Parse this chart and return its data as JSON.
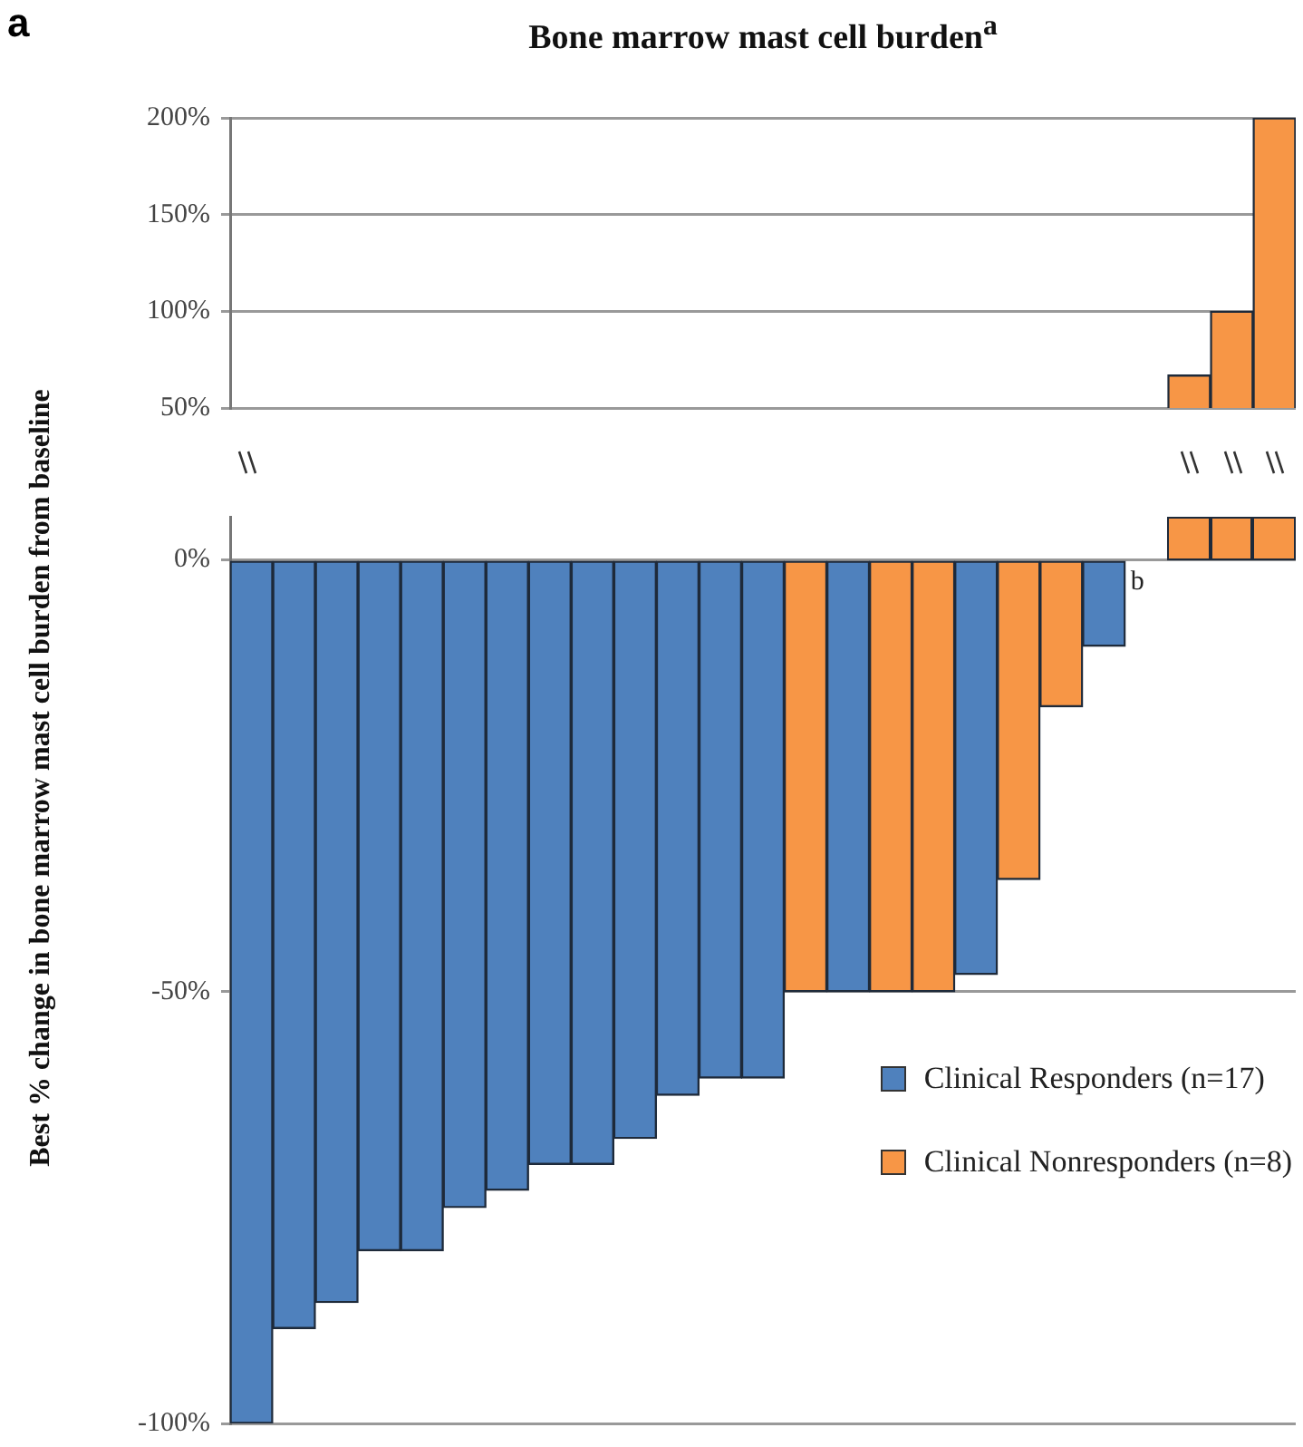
{
  "chart_data": [
    {
      "type": "bar",
      "title": "Bone marrow mast cell burden$^{a}$",
      "annotations": [
        "a"
      ],
      "categories": [
        null,
        null,
        null,
        null,
        null,
        null,
        null,
        null,
        null,
        null,
        null,
        null,
        null,
        null,
        null,
        null,
        null,
        null,
        null,
        null,
        null,
        null,
        null,
        null,
        null
      ],
      "series": [
        {
          "color": "#f79646",
          "values": [
            null,
            null,
            null,
            null,
            null,
            null,
            null,
            null,
            null,
            null,
            null,
            null,
            null,
            null,
            null,
            null,
            null,
            null,
            null,
            null,
            null,
            null,
            67,
            100,
            200
          ]
        }
      ],
      "ylim": [
        50,
        200
      ],
      "yticks": [
        {
          "value": 50,
          "label": "50%"
        },
        {
          "value": 100,
          "label": "100%"
        },
        {
          "value": 150,
          "label": "150%"
        },
        {
          "value": 200,
          "label": "200%"
        }
      ],
      "grid": "y",
      "tick_labels": "y"
    },
    {
      "type": "bar",
      "ylabel": "Best % change in bone marrow mast cell burden from baseline",
      "annotations": [
        {
          "text": "b",
          "y": 0
        }
      ],
      "categories": [
        null,
        null,
        null,
        null,
        null,
        null,
        null,
        null,
        null,
        null,
        null,
        null,
        null,
        null,
        null,
        null,
        null,
        null,
        null,
        null,
        null,
        null,
        null,
        null,
        null
      ],
      "series": [
        {
          "name": "Clinical Responders  (n=17)",
          "color": "#4f81bd",
          "values": [
            -100,
            -89,
            -86,
            -80,
            -80,
            -75,
            -73,
            -70,
            -70,
            -67,
            -62,
            -60,
            -60,
            null,
            -50,
            null,
            null,
            -48,
            null,
            null,
            -10,
            0,
            null,
            null,
            null
          ]
        },
        {
          "name": "Clinical Nonresponders (n=8)",
          "color": "#f79646",
          "values": [
            null,
            null,
            null,
            null,
            null,
            null,
            null,
            null,
            null,
            null,
            null,
            null,
            null,
            -50,
            null,
            -50,
            -50,
            null,
            -37,
            -17,
            null,
            null,
            null,
            null,
            null
          ]
        }
      ],
      "ylim": [
        -100,
        5
      ],
      "yticks": [
        {
          "value": -100,
          "label": "-100%"
        },
        {
          "value": -50,
          "label": "-50%"
        },
        {
          "value": 0,
          "label": "0%"
        }
      ],
      "grid": "y",
      "tick_labels": "y",
      "legend": "right"
    }
  ]
}
